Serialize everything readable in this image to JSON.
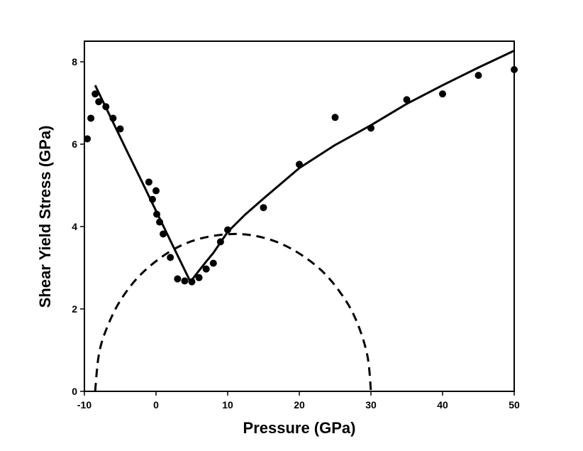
{
  "chart_data": {
    "type": "scatter",
    "xlabel": "Pressure (GPa)",
    "ylabel": "Shear Yield Stress (GPa)",
    "xlim": [
      -10,
      50
    ],
    "ylim": [
      0,
      8.5
    ],
    "xticks": [
      -10,
      0,
      10,
      20,
      30,
      40,
      50
    ],
    "yticks": [
      0,
      2,
      4,
      6,
      8
    ],
    "grid": false,
    "series": [
      {
        "type": "scatter",
        "color": "#000000",
        "x": [
          -9.6,
          -9.1,
          -8.5,
          -8,
          -7,
          -6,
          -5,
          -1,
          -0.5,
          0,
          0.1,
          0.5,
          1,
          2,
          3,
          4,
          5,
          6,
          7,
          8,
          9,
          10,
          15,
          20,
          25,
          30,
          35,
          40,
          45,
          50
        ],
        "values": [
          6.13,
          6.63,
          7.22,
          7.03,
          6.91,
          6.63,
          6.37,
          5.08,
          4.66,
          4.87,
          4.3,
          4.11,
          3.82,
          3.25,
          2.73,
          2.68,
          2.66,
          2.76,
          2.97,
          3.11,
          3.63,
          3.92,
          4.46,
          5.51,
          6.65,
          6.39,
          7.08,
          7.22,
          7.67,
          7.81
        ]
      },
      {
        "type": "line",
        "color": "#000000",
        "linestyle": "solid",
        "x": [
          -8.5,
          -6,
          -4,
          -2,
          0,
          2,
          4.8,
          6,
          7,
          8,
          10,
          12.5,
          15,
          20,
          25,
          30,
          35,
          40,
          45,
          50
        ],
        "values": [
          7.43,
          6.53,
          5.81,
          5.1,
          4.38,
          3.66,
          2.66,
          2.93,
          3.15,
          3.36,
          3.87,
          4.3,
          4.68,
          5.42,
          5.98,
          6.46,
          6.98,
          7.43,
          7.86,
          8.27
        ]
      },
      {
        "type": "line",
        "color": "#000000",
        "linestyle": "dashed",
        "smooth": true,
        "x": [
          -8.5,
          -8,
          -7,
          -5,
          -2,
          2,
          6,
          10.75,
          15,
          19,
          23,
          26,
          28,
          29.5,
          30
        ],
        "values": [
          0,
          0.87,
          1.48,
          2.2,
          2.86,
          3.4,
          3.7,
          3.82,
          3.73,
          3.45,
          2.95,
          2.33,
          1.7,
          0.87,
          0
        ]
      }
    ]
  }
}
